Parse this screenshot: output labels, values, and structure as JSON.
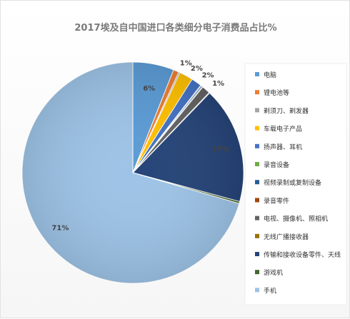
{
  "chart_data": {
    "type": "pie",
    "title": "2017埃及自中国进口各类细分电子消费品占比%",
    "legend_position": "right",
    "slices": [
      {
        "name": "电脑",
        "value": 6,
        "label": "6%",
        "color": "#5b9bd5"
      },
      {
        "name": "锂电池等",
        "value": 0.8,
        "label": "1%",
        "color": "#ed7d31"
      },
      {
        "name": "剃须刀、剃发器",
        "value": 0.2,
        "label": "",
        "color": "#a5a5a5"
      },
      {
        "name": "车载电子产品",
        "value": 2,
        "label": "2%",
        "color": "#ffc000"
      },
      {
        "name": "扬声器、耳机",
        "value": 1.5,
        "label": "2%",
        "color": "#4472c4"
      },
      {
        "name": "录音设备",
        "value": 0.1,
        "label": "",
        "color": "#70ad47"
      },
      {
        "name": "视频录制或复制设备",
        "value": 0.2,
        "label": "",
        "color": "#255e91"
      },
      {
        "name": "录音零件",
        "value": 0.1,
        "label": "",
        "color": "#9e480e"
      },
      {
        "name": "电视、摄像机、照相机",
        "value": 1.2,
        "label": "1%",
        "color": "#636363"
      },
      {
        "name": "无线广播接收器",
        "value": 0.1,
        "label": "",
        "color": "#997300"
      },
      {
        "name": "传输和接收设备零件、天线",
        "value": 17,
        "label": "17%",
        "color": "#264478"
      },
      {
        "name": "游戏机",
        "value": 0.3,
        "label": "",
        "color": "#43682b"
      },
      {
        "name": "手机",
        "value": 70.5,
        "label": "71%",
        "color": "#9dc3e6"
      }
    ]
  }
}
